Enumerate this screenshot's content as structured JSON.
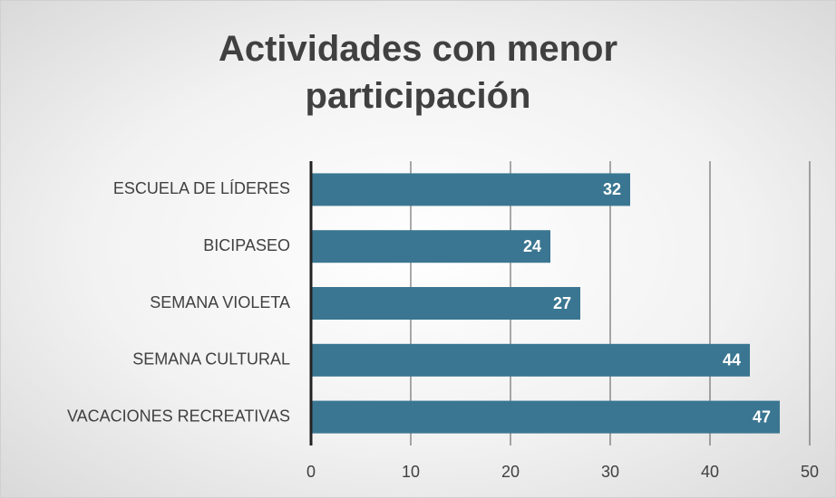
{
  "chart_data": {
    "type": "bar",
    "orientation": "horizontal",
    "title": "Actividades con menor participación",
    "categories": [
      "ESCUELA DE LÍDERES",
      "BICIPASEO",
      "SEMANA VIOLETA",
      "SEMANA CULTURAL",
      "VACACIONES RECREATIVAS"
    ],
    "values": [
      32,
      24,
      27,
      44,
      47
    ],
    "color": "#3a7691",
    "xlim": [
      0,
      50
    ],
    "xticks": [
      0,
      10,
      20,
      30,
      40,
      50
    ],
    "grid": true
  }
}
